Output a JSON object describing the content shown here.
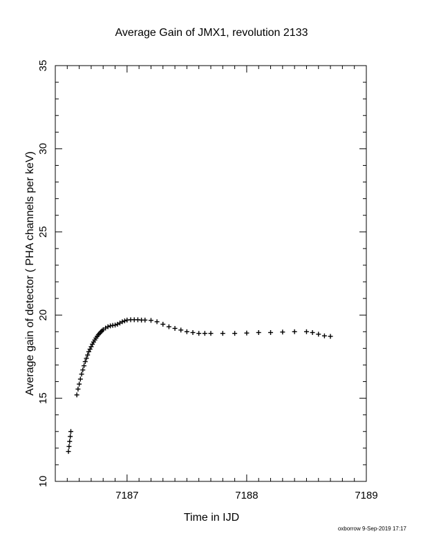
{
  "chart_data": {
    "type": "scatter",
    "title": "Average Gain of JMX1, revolution 2133",
    "xlabel": "Time in IJD",
    "ylabel": "Average gain of detector ( PHA channels per keV)",
    "xlim": [
      7186.4,
      7189.0
    ],
    "ylim": [
      10,
      35
    ],
    "xticks": [
      7187,
      7188,
      7189
    ],
    "yticks": [
      10,
      15,
      20,
      25,
      30,
      35
    ],
    "xtick_labels": [
      "7187",
      "7188",
      "7189"
    ],
    "ytick_labels": [
      "10",
      "15",
      "20",
      "25",
      "30",
      "35"
    ],
    "x_minor_step": 0.1,
    "y_minor_step": 1,
    "grid": false,
    "marker": "plus",
    "series": [
      {
        "x": [
          7186.51,
          7186.515,
          7186.52,
          7186.525,
          7186.53,
          7186.58,
          7186.59,
          7186.6,
          7186.61,
          7186.62,
          7186.63,
          7186.64,
          7186.65,
          7186.66,
          7186.67,
          7186.68,
          7186.69,
          7186.7,
          7186.71,
          7186.72,
          7186.73,
          7186.74,
          7186.75,
          7186.76,
          7186.77,
          7186.78,
          7186.79,
          7186.8,
          7186.82,
          7186.84,
          7186.86,
          7186.88,
          7186.9,
          7186.92,
          7186.94,
          7186.96,
          7186.98,
          7187.0,
          7187.03,
          7187.06,
          7187.09,
          7187.12,
          7187.15,
          7187.2,
          7187.25,
          7187.3,
          7187.35,
          7187.4,
          7187.45,
          7187.5,
          7187.55,
          7187.6,
          7187.65,
          7187.7,
          7187.8,
          7187.9,
          7188.0,
          7188.1,
          7188.2,
          7188.3,
          7188.4,
          7188.5,
          7188.55,
          7188.6,
          7188.65,
          7188.7
        ],
        "y": [
          11.8,
          12.1,
          12.4,
          12.7,
          13.0,
          15.2,
          15.55,
          15.85,
          16.15,
          16.45,
          16.7,
          16.95,
          17.2,
          17.4,
          17.6,
          17.8,
          17.95,
          18.1,
          18.25,
          18.38,
          18.5,
          18.62,
          18.72,
          18.82,
          18.9,
          18.98,
          19.05,
          19.12,
          19.22,
          19.3,
          19.35,
          19.38,
          19.4,
          19.45,
          19.52,
          19.6,
          19.65,
          19.7,
          19.72,
          19.72,
          19.72,
          19.7,
          19.7,
          19.68,
          19.6,
          19.45,
          19.3,
          19.2,
          19.1,
          19.0,
          18.95,
          18.9,
          18.9,
          18.9,
          18.9,
          18.9,
          18.92,
          18.95,
          18.95,
          18.98,
          19.0,
          19.0,
          18.95,
          18.85,
          18.75,
          18.72
        ]
      }
    ]
  },
  "footer": {
    "credit": "oxborrow  9-Sep-2019 17:17"
  }
}
